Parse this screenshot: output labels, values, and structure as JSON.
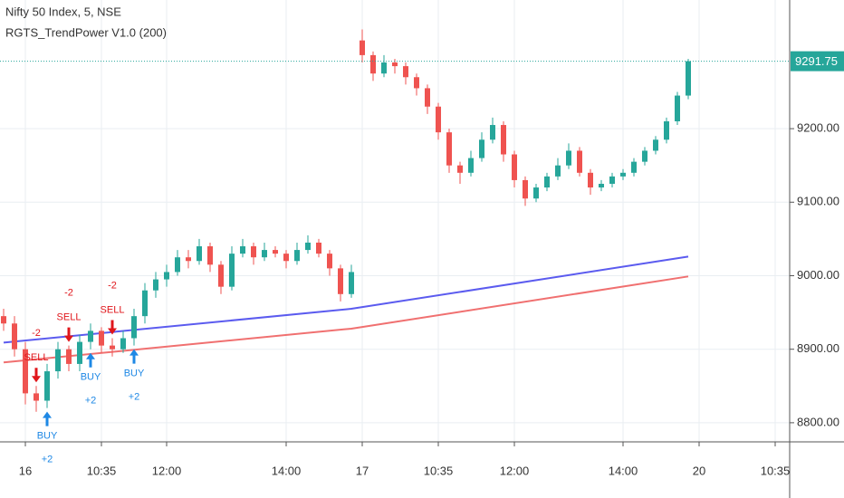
{
  "chart_data": {
    "type": "candlestick",
    "title": "Nifty 50 Index, 5, NSE",
    "indicator": "RGTS_TrendPower V1.0 (200)",
    "up_color": "#26a69a",
    "down_color": "#ef5350",
    "categories": [
      null,
      null,
      "16",
      null,
      null,
      null,
      null,
      null,
      null,
      "10:35",
      null,
      null,
      null,
      null,
      null,
      "12:00",
      null,
      null,
      null,
      null,
      null,
      null,
      null,
      null,
      null,
      null,
      "14:00",
      null,
      null,
      null,
      null,
      null,
      null,
      "17",
      null,
      null,
      null,
      null,
      null,
      null,
      "10:35",
      null,
      null,
      null,
      null,
      null,
      null,
      "12:00",
      null,
      null,
      null,
      null,
      null,
      null,
      null,
      null,
      null,
      "14:00",
      null,
      null,
      null,
      null,
      null,
      null,
      "20",
      null,
      null,
      null,
      null,
      null,
      null,
      "10:35"
    ],
    "open": [
      8945,
      8935,
      8900,
      8840,
      8830,
      8870,
      8900,
      8880,
      8910,
      8925,
      8905,
      8900,
      8915,
      8945,
      8980,
      8995,
      9005,
      9025,
      9020,
      9040,
      9015,
      8985,
      9030,
      9040,
      9025,
      9035,
      9030,
      9020,
      9035,
      9045,
      9030,
      9010,
      8975,
      9320,
      9300,
      9275,
      9290,
      9285,
      9270,
      9255,
      9230,
      9195,
      9150,
      9140,
      9160,
      9185,
      9205,
      9165,
      9130,
      9105,
      9120,
      9135,
      9150,
      9170,
      9140,
      9120,
      9125,
      9135,
      9140,
      9155,
      9170,
      9185,
      9210,
      9245,
      null,
      null,
      null,
      null,
      null,
      null,
      null,
      null
    ],
    "high": [
      8955,
      8945,
      8910,
      8850,
      8880,
      8910,
      8905,
      8920,
      8935,
      8930,
      8915,
      8925,
      8955,
      8990,
      9005,
      9015,
      9035,
      9035,
      9050,
      9045,
      9020,
      9040,
      9050,
      9045,
      9045,
      9040,
      9035,
      9045,
      9055,
      9050,
      9035,
      9015,
      9015,
      9335,
      9305,
      9300,
      9295,
      9290,
      9275,
      9260,
      9235,
      9200,
      9155,
      9170,
      9195,
      9215,
      9210,
      9170,
      9135,
      9125,
      9140,
      9160,
      9180,
      9175,
      9145,
      9130,
      9140,
      9145,
      9160,
      9175,
      9190,
      9215,
      9250,
      9295,
      null,
      null,
      null,
      null,
      null,
      null,
      null,
      null
    ],
    "low": [
      8925,
      8890,
      8825,
      8815,
      8820,
      8860,
      8870,
      8870,
      8900,
      8895,
      8890,
      8895,
      8905,
      8935,
      8970,
      8985,
      9000,
      9010,
      9015,
      9005,
      8975,
      8980,
      9025,
      9015,
      9020,
      9025,
      9010,
      9015,
      9030,
      9025,
      9000,
      8965,
      8970,
      9290,
      9265,
      9270,
      9275,
      9260,
      9245,
      9220,
      9185,
      9140,
      9125,
      9135,
      9155,
      9180,
      9155,
      9120,
      9095,
      9100,
      9115,
      9130,
      9145,
      9135,
      9110,
      9115,
      9120,
      9130,
      9135,
      9150,
      9165,
      9180,
      9205,
      9240,
      null,
      null,
      null,
      null,
      null,
      null,
      null,
      null
    ],
    "close": [
      8935,
      8900,
      8840,
      8830,
      8870,
      8900,
      8880,
      8910,
      8925,
      8905,
      8900,
      8915,
      8945,
      8980,
      8995,
      9005,
      9025,
      9020,
      9040,
      9015,
      8985,
      9030,
      9040,
      9025,
      9035,
      9030,
      9020,
      9035,
      9045,
      9030,
      9010,
      8975,
      9005,
      9300,
      9275,
      9290,
      9285,
      9270,
      9255,
      9230,
      9195,
      9150,
      9140,
      9160,
      9185,
      9205,
      9165,
      9130,
      9105,
      9120,
      9135,
      9150,
      9170,
      9140,
      9120,
      9125,
      9135,
      9140,
      9155,
      9170,
      9185,
      9210,
      9245,
      9291.75,
      null,
      null,
      null,
      null,
      null,
      null,
      null,
      null
    ],
    "lines": [
      {
        "color": "#5b5bef",
        "x": [
          0,
          32,
          63
        ],
        "values": [
          8909,
          8955,
          9026
        ]
      },
      {
        "color": "#f07070",
        "x": [
          0,
          32,
          63
        ],
        "values": [
          8882,
          8928,
          8999
        ]
      }
    ],
    "signals": [
      {
        "index": 3,
        "label": "SELL",
        "amount": "-2",
        "color": "#e0161b"
      },
      {
        "index": 6,
        "label": "SELL",
        "amount": "-2",
        "color": "#e0161b"
      },
      {
        "index": 10,
        "label": "SELL",
        "amount": "-2",
        "color": "#e0161b"
      },
      {
        "index": 4,
        "label": "BUY",
        "amount": "+2",
        "color": "#1e88e5"
      },
      {
        "index": 8,
        "label": "BUY",
        "amount": "+2",
        "color": "#1e88e5"
      },
      {
        "index": 12,
        "label": "BUY",
        "amount": "+2",
        "color": "#1e88e5"
      }
    ],
    "last_price": 9291.75,
    "ylim": [
      8774,
      9375
    ],
    "yticks": [
      {
        "value": 8800,
        "label": "8800.00"
      },
      {
        "value": 8900,
        "label": "8900.00"
      },
      {
        "value": 9000,
        "label": "9000.00"
      },
      {
        "value": 9100,
        "label": "9100.00"
      },
      {
        "value": 9200,
        "label": "9200.00"
      }
    ],
    "grid": true
  }
}
